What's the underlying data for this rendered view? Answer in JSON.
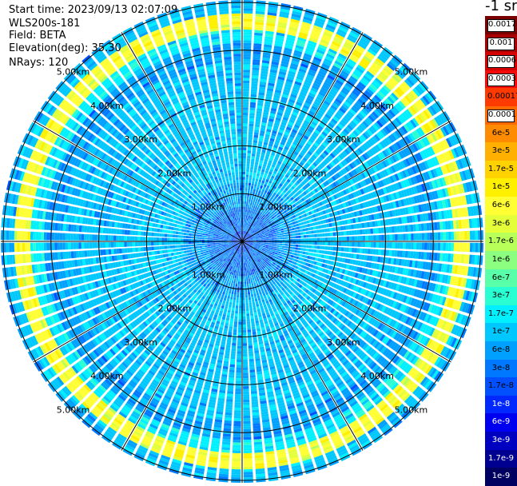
{
  "header": {
    "start_time": "Start time: 2023/09/13 02:07:09",
    "station": "WLS200s-181",
    "field": "Field: BETA",
    "elevation": "Elevation(deg): 35.30",
    "nrays": "NRays: 120"
  },
  "colorbar": {
    "unit_label": "-1 sr",
    "levels": [
      {
        "label": "0.0017",
        "color": "#7a0000",
        "boxed": true
      },
      {
        "label": "0.001",
        "color": "#a80000",
        "boxed": true
      },
      {
        "label": "0.0006",
        "color": "#d40000",
        "boxed": true
      },
      {
        "label": "0.0003",
        "color": "#f40a0a",
        "boxed": true
      },
      {
        "label": "0.00017",
        "color": "#ff3a00",
        "boxed": false
      },
      {
        "label": "0.0001",
        "color": "#ff6a00",
        "boxed": true
      },
      {
        "label": "6e-5",
        "color": "#ff8c00",
        "boxed": false
      },
      {
        "label": "3e-5",
        "color": "#ffb000",
        "boxed": false
      },
      {
        "label": "1.7e-5",
        "color": "#ffd200",
        "boxed": false
      },
      {
        "label": "1e-5",
        "color": "#fff000",
        "boxed": false
      },
      {
        "label": "6e-6",
        "color": "#ffff33",
        "boxed": false
      },
      {
        "label": "3e-6",
        "color": "#e4ff3a",
        "boxed": false
      },
      {
        "label": "1.7e-6",
        "color": "#b8ff5a",
        "boxed": false
      },
      {
        "label": "1e-6",
        "color": "#8cff80",
        "boxed": false
      },
      {
        "label": "6e-7",
        "color": "#5affaa",
        "boxed": false
      },
      {
        "label": "3e-7",
        "color": "#2affd4",
        "boxed": false
      },
      {
        "label": "1.7e-7",
        "color": "#00f0ff",
        "boxed": false
      },
      {
        "label": "1e-7",
        "color": "#00c8ff",
        "boxed": false
      },
      {
        "label": "6e-8",
        "color": "#00a0ff",
        "boxed": false
      },
      {
        "label": "3e-8",
        "color": "#0078ff",
        "boxed": false
      },
      {
        "label": "1.7e-8",
        "color": "#0050ff",
        "boxed": false
      },
      {
        "label": "1e-8",
        "color": "#0028ff",
        "boxed": false
      },
      {
        "label": "6e-9",
        "color": "#0000f0",
        "boxed": false
      },
      {
        "label": "3e-9",
        "color": "#0000c0",
        "boxed": false
      },
      {
        "label": "1.7e-9",
        "color": "#000090",
        "boxed": false
      },
      {
        "label": "1e-9",
        "color": "#000060",
        "boxed": false
      }
    ]
  },
  "chart_data": {
    "type": "heatmap",
    "projection": "polar (PPI scan)",
    "range_unit": "km",
    "max_range_km": 5.05,
    "n_rays": 120,
    "range_rings": [
      {
        "value": 1,
        "label": "1.00km"
      },
      {
        "value": 2,
        "label": "2.00km"
      },
      {
        "value": 3,
        "label": "3.00km"
      },
      {
        "value": 4,
        "label": "4.00km"
      },
      {
        "value": 5,
        "label": "5.00km"
      }
    ],
    "radial_lines_deg": [
      0,
      30,
      60,
      90,
      120,
      150,
      180,
      210,
      240,
      270,
      300,
      330
    ],
    "field_profile": {
      "description": "dominant backscatter by range: dark blue near center, light blue/cyan mid-range, yellow ring near outer edge",
      "range_km": [
        0,
        0.5,
        1.0,
        1.5,
        2.0,
        2.5,
        3.0,
        3.5,
        4.0,
        4.3,
        4.6,
        4.9,
        5.05
      ],
      "color": [
        "#0050ff",
        "#0078ff",
        "#00a0ff",
        "#00c8ff",
        "#00c8ff",
        "#00c8ff",
        "#00c8ff",
        "#00c8ff",
        "#00a0ff",
        "#00f0ff",
        "#ffff33",
        "#00c8ff",
        "#00a0ff"
      ]
    }
  }
}
